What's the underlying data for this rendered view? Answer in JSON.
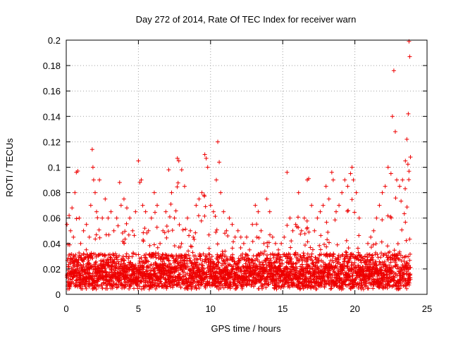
{
  "chart_data": {
    "type": "scatter",
    "title": "Day 272 of 2014, Rate Of TEC Index for receiver warn",
    "xlabel": "GPS time / hours",
    "ylabel": "ROTI / TECUs",
    "xlim": [
      0,
      25
    ],
    "ylim": [
      0,
      0.2
    ],
    "x_ticks": [
      "0",
      "5",
      "10",
      "15",
      "20",
      "25"
    ],
    "y_ticks": [
      "0",
      "0.02",
      "0.04",
      "0.06",
      "0.08",
      "0.1",
      "0.12",
      "0.14",
      "0.16",
      "0.18",
      "0.2"
    ],
    "x_tick_values": [
      0,
      5,
      10,
      15,
      20,
      25
    ],
    "y_tick_values": [
      0,
      0.02,
      0.04,
      0.06,
      0.08,
      0.1,
      0.12,
      0.14,
      0.16,
      0.18,
      0.2
    ],
    "grid": true,
    "marker": "+",
    "color": "#ee0000",
    "series": [
      {
        "name": "ROTI",
        "points": [
          [
            0.05,
            0.055
          ],
          [
            0.2,
            0.062
          ],
          [
            0.3,
            0.05
          ],
          [
            0.4,
            0.068
          ],
          [
            0.5,
            0.045
          ],
          [
            0.6,
            0.08
          ],
          [
            0.7,
            0.096
          ],
          [
            0.8,
            0.097
          ],
          [
            0.9,
            0.06
          ],
          [
            1.0,
            0.04
          ],
          [
            1.2,
            0.05
          ],
          [
            1.4,
            0.055
          ],
          [
            1.6,
            0.045
          ],
          [
            1.7,
            0.07
          ],
          [
            1.8,
            0.114
          ],
          [
            1.85,
            0.1
          ],
          [
            1.9,
            0.09
          ],
          [
            2.0,
            0.08
          ],
          [
            2.1,
            0.065
          ],
          [
            2.3,
            0.09
          ],
          [
            2.5,
            0.06
          ],
          [
            2.7,
            0.075
          ],
          [
            2.9,
            0.06
          ],
          [
            3.1,
            0.065
          ],
          [
            3.3,
            0.05
          ],
          [
            3.5,
            0.06
          ],
          [
            3.7,
            0.088
          ],
          [
            3.8,
            0.07
          ],
          [
            4.0,
            0.075
          ],
          [
            4.2,
            0.068
          ],
          [
            4.4,
            0.06
          ],
          [
            4.6,
            0.05
          ],
          [
            4.8,
            0.065
          ],
          [
            5.0,
            0.105
          ],
          [
            5.1,
            0.088
          ],
          [
            5.2,
            0.09
          ],
          [
            5.3,
            0.07
          ],
          [
            5.5,
            0.065
          ],
          [
            5.7,
            0.05
          ],
          [
            5.9,
            0.06
          ],
          [
            6.1,
            0.08
          ],
          [
            6.3,
            0.07
          ],
          [
            6.5,
            0.04
          ],
          [
            6.7,
            0.05
          ],
          [
            6.9,
            0.065
          ],
          [
            7.1,
            0.098
          ],
          [
            7.3,
            0.08
          ],
          [
            7.5,
            0.06
          ],
          [
            7.7,
            0.107
          ],
          [
            7.8,
            0.105
          ],
          [
            8.0,
            0.098
          ],
          [
            8.2,
            0.085
          ],
          [
            8.4,
            0.06
          ],
          [
            8.6,
            0.05
          ],
          [
            8.8,
            0.045
          ],
          [
            9.0,
            0.07
          ],
          [
            9.2,
            0.075
          ],
          [
            9.4,
            0.08
          ],
          [
            9.6,
            0.11
          ],
          [
            9.7,
            0.107
          ],
          [
            9.8,
            0.1
          ],
          [
            10.0,
            0.07
          ],
          [
            10.2,
            0.065
          ],
          [
            10.4,
            0.09
          ],
          [
            10.5,
            0.12
          ],
          [
            10.6,
            0.104
          ],
          [
            10.7,
            0.08
          ],
          [
            10.9,
            0.065
          ],
          [
            11.1,
            0.05
          ],
          [
            11.3,
            0.06
          ],
          [
            11.5,
            0.055
          ],
          [
            11.7,
            0.045
          ],
          [
            11.9,
            0.05
          ],
          [
            12.1,
            0.045
          ],
          [
            12.3,
            0.04
          ],
          [
            12.5,
            0.045
          ],
          [
            12.7,
            0.035
          ],
          [
            12.9,
            0.055
          ],
          [
            13.1,
            0.07
          ],
          [
            13.3,
            0.065
          ],
          [
            13.5,
            0.05
          ],
          [
            13.7,
            0.04
          ],
          [
            13.9,
            0.075
          ],
          [
            14.1,
            0.065
          ],
          [
            14.3,
            0.045
          ],
          [
            14.5,
            0.04
          ],
          [
            14.7,
            0.035
          ],
          [
            14.9,
            0.04
          ],
          [
            15.1,
            0.045
          ],
          [
            15.3,
            0.096
          ],
          [
            15.5,
            0.06
          ],
          [
            15.7,
            0.05
          ],
          [
            15.9,
            0.055
          ],
          [
            16.1,
            0.08
          ],
          [
            16.3,
            0.05
          ],
          [
            16.5,
            0.06
          ],
          [
            16.7,
            0.09
          ],
          [
            16.8,
            0.091
          ],
          [
            17.0,
            0.07
          ],
          [
            17.2,
            0.05
          ],
          [
            17.4,
            0.06
          ],
          [
            17.6,
            0.065
          ],
          [
            17.8,
            0.07
          ],
          [
            18.0,
            0.085
          ],
          [
            18.2,
            0.075
          ],
          [
            18.4,
            0.096
          ],
          [
            18.5,
            0.09
          ],
          [
            18.7,
            0.065
          ],
          [
            18.9,
            0.07
          ],
          [
            19.1,
            0.08
          ],
          [
            19.3,
            0.09
          ],
          [
            19.5,
            0.085
          ],
          [
            19.7,
            0.095
          ],
          [
            19.8,
            0.1
          ],
          [
            19.9,
            0.09
          ],
          [
            20.1,
            0.08
          ],
          [
            20.3,
            0.06
          ],
          [
            20.5,
            0.02
          ],
          [
            20.7,
            0.03
          ],
          [
            20.9,
            0.04
          ],
          [
            21.1,
            0.045
          ],
          [
            21.3,
            0.05
          ],
          [
            21.5,
            0.06
          ],
          [
            21.7,
            0.07
          ],
          [
            21.9,
            0.08
          ],
          [
            22.1,
            0.085
          ],
          [
            22.3,
            0.1
          ],
          [
            22.5,
            0.095
          ],
          [
            22.6,
            0.14
          ],
          [
            22.7,
            0.176
          ],
          [
            22.8,
            0.128
          ],
          [
            22.9,
            0.09
          ],
          [
            23.1,
            0.085
          ],
          [
            23.3,
            0.09
          ],
          [
            23.5,
            0.105
          ],
          [
            23.6,
            0.122
          ],
          [
            23.7,
            0.142
          ],
          [
            23.75,
            0.199
          ],
          [
            23.8,
            0.187
          ],
          [
            23.85,
            0.108
          ]
        ]
      }
    ]
  }
}
